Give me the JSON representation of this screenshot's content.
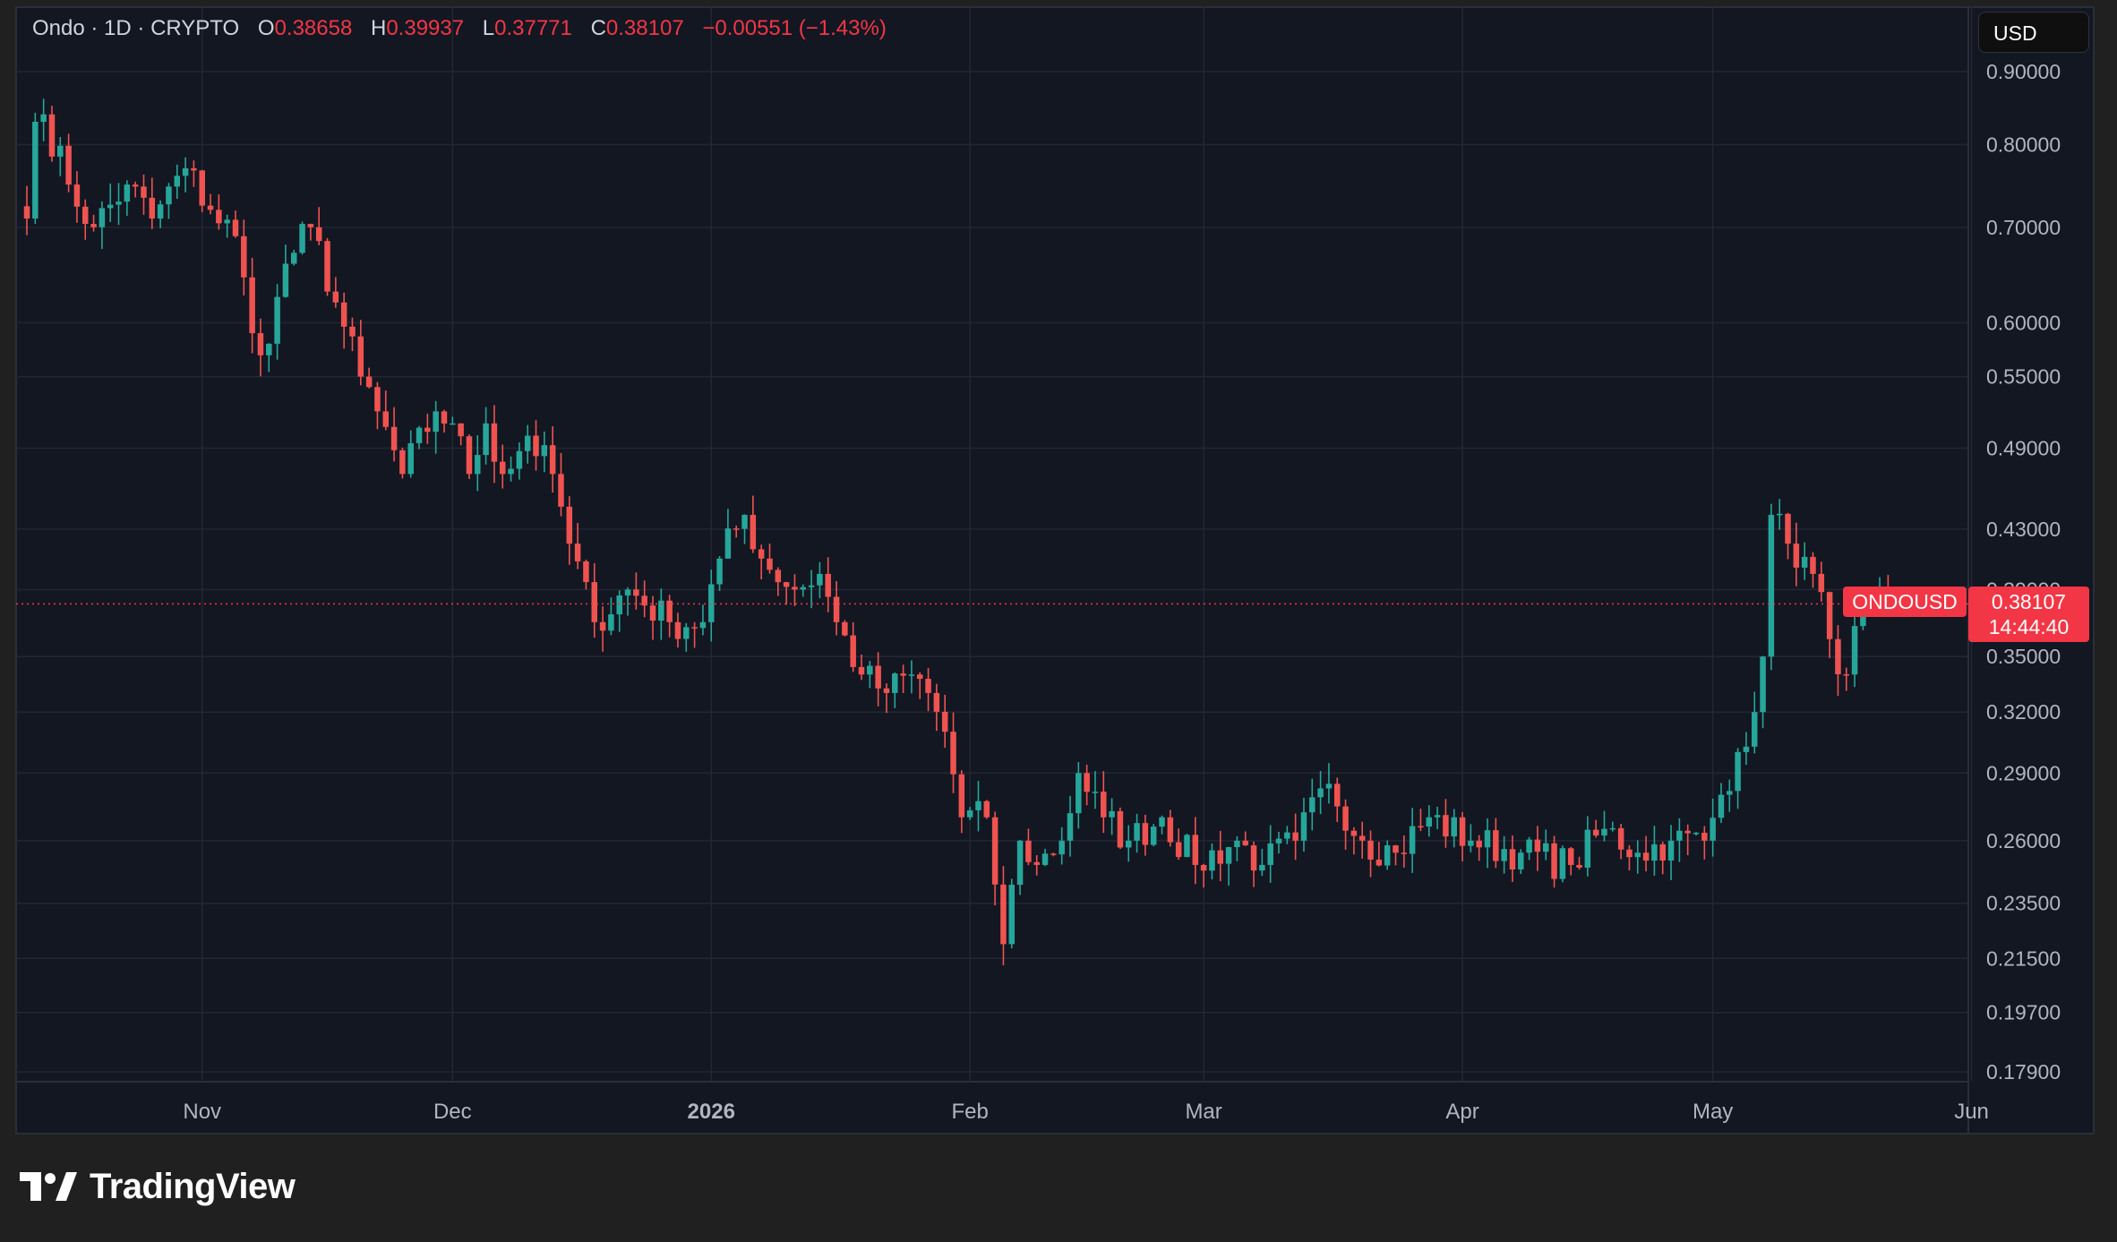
{
  "legend": {
    "symbol": "Ondo",
    "interval": "1D",
    "exchange": "CRYPTO",
    "open_label": "O",
    "open": "0.38658",
    "high_label": "H",
    "high": "0.39937",
    "low_label": "L",
    "low": "0.37771",
    "close_label": "C",
    "close": "0.38107",
    "change": "−0.00551 (−1.43%)"
  },
  "currency": "USD",
  "last_price": {
    "symbol": "ONDOUSD",
    "price": "0.38107",
    "countdown": "14:44:40"
  },
  "brand": {
    "name": "TradingView"
  },
  "colors": {
    "background": "#131722",
    "frame": "#202020",
    "grid": "#232734",
    "up": "#26a69a",
    "down": "#ef5350",
    "text": "#b2b5be",
    "last_price": "#f23645"
  },
  "chart_data": {
    "type": "candlestick",
    "scale": "log",
    "grid": true,
    "y_ticks": [
      "0.90000",
      "0.80000",
      "0.70000",
      "0.60000",
      "0.55000",
      "0.49000",
      "0.43000",
      "0.39000",
      "0.35000",
      "0.32000",
      "0.29000",
      "0.26000",
      "0.23500",
      "0.21500",
      "0.19700",
      "0.17900"
    ],
    "x_ticks": [
      "Nov",
      "Dec",
      "2026",
      "Feb",
      "Mar",
      "Apr",
      "May",
      "Jun"
    ],
    "x_ticks_bold": [
      "2026"
    ],
    "last_price_line": 0.38107,
    "close_series": {
      "start": "2025-10-11",
      "end": "2026-05-22",
      "keypoints": [
        [
          "2025-10-11",
          0.71
        ],
        [
          "2025-10-12",
          0.83
        ],
        [
          "2025-10-13",
          0.84
        ],
        [
          "2025-10-16",
          0.75
        ],
        [
          "2025-10-19",
          0.7
        ],
        [
          "2025-10-23",
          0.75
        ],
        [
          "2025-10-26",
          0.71
        ],
        [
          "2025-10-30",
          0.77
        ],
        [
          "2025-11-02",
          0.72
        ],
        [
          "2025-11-05",
          0.69
        ],
        [
          "2025-11-07",
          0.59
        ],
        [
          "2025-11-09",
          0.58
        ],
        [
          "2025-11-11",
          0.66
        ],
        [
          "2025-11-14",
          0.7
        ],
        [
          "2025-11-17",
          0.62
        ],
        [
          "2025-11-20",
          0.55
        ],
        [
          "2025-11-22",
          0.52
        ],
        [
          "2025-11-25",
          0.47
        ],
        [
          "2025-11-29",
          0.52
        ],
        [
          "2025-12-01",
          0.51
        ],
        [
          "2025-12-03",
          0.47
        ],
        [
          "2025-12-05",
          0.51
        ],
        [
          "2025-12-07",
          0.47
        ],
        [
          "2025-12-10",
          0.5
        ],
        [
          "2025-12-13",
          0.47
        ],
        [
          "2025-12-15",
          0.42
        ],
        [
          "2025-12-18",
          0.37
        ],
        [
          "2025-12-22",
          0.39
        ],
        [
          "2025-12-27",
          0.37
        ],
        [
          "2025-12-31",
          0.37
        ],
        [
          "2026-01-02",
          0.41
        ],
        [
          "2026-01-05",
          0.44
        ],
        [
          "2026-01-07",
          0.41
        ],
        [
          "2026-01-11",
          0.39
        ],
        [
          "2026-01-14",
          0.4
        ],
        [
          "2026-01-16",
          0.37
        ],
        [
          "2026-01-19",
          0.34
        ],
        [
          "2026-01-22",
          0.33
        ],
        [
          "2026-01-25",
          0.34
        ],
        [
          "2026-01-27",
          0.33
        ],
        [
          "2026-01-29",
          0.31
        ],
        [
          "2026-01-31",
          0.27
        ],
        [
          "2026-02-03",
          0.27
        ],
        [
          "2026-02-05",
          0.22
        ],
        [
          "2026-02-07",
          0.26
        ],
        [
          "2026-02-09",
          0.25
        ],
        [
          "2026-02-12",
          0.26
        ],
        [
          "2026-02-14",
          0.29
        ],
        [
          "2026-02-17",
          0.27
        ],
        [
          "2026-02-20",
          0.26
        ],
        [
          "2026-02-24",
          0.27
        ],
        [
          "2026-02-28",
          0.25
        ],
        [
          "2026-03-05",
          0.26
        ],
        [
          "2026-03-08",
          0.25
        ],
        [
          "2026-03-12",
          0.26
        ],
        [
          "2026-03-16",
          0.285
        ],
        [
          "2026-03-20",
          0.26
        ],
        [
          "2026-03-24",
          0.255
        ],
        [
          "2026-03-28",
          0.27
        ],
        [
          "2026-04-02",
          0.26
        ],
        [
          "2026-04-08",
          0.255
        ],
        [
          "2026-04-14",
          0.25
        ],
        [
          "2026-04-18",
          0.265
        ],
        [
          "2026-04-22",
          0.255
        ],
        [
          "2026-04-26",
          0.26
        ],
        [
          "2026-04-30",
          0.26
        ],
        [
          "2026-05-02",
          0.28
        ],
        [
          "2026-05-04",
          0.3
        ],
        [
          "2026-05-06",
          0.32
        ],
        [
          "2026-05-07",
          0.35
        ],
        [
          "2026-05-08",
          0.44
        ],
        [
          "2026-05-10",
          0.42
        ],
        [
          "2026-05-13",
          0.4
        ],
        [
          "2026-05-15",
          0.36
        ],
        [
          "2026-05-17",
          0.34
        ],
        [
          "2026-05-19",
          0.38
        ],
        [
          "2026-05-22",
          0.38107
        ]
      ]
    }
  }
}
